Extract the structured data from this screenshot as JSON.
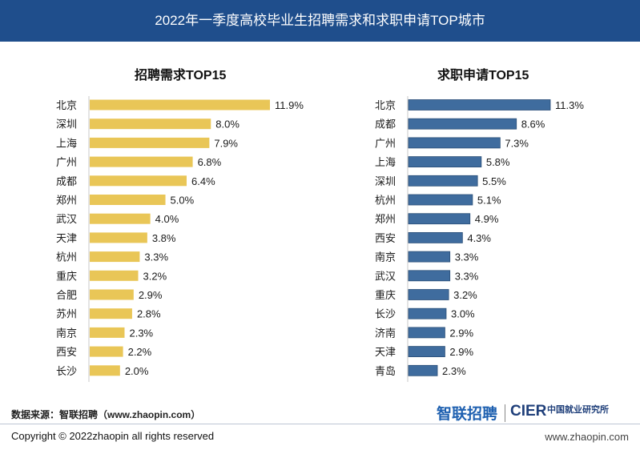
{
  "header": {
    "title": "2022年一季度高校毕业生招聘需求和求职申请TOP城市"
  },
  "colors": {
    "header_bg": "#1f4e8c",
    "left_bar": "#e9c657",
    "right_bar": "#3f6c9e"
  },
  "chart_data": [
    {
      "type": "bar",
      "orientation": "horizontal",
      "title": "招聘需求TOP15",
      "categories": [
        "北京",
        "深圳",
        "上海",
        "广州",
        "成都",
        "郑州",
        "武汉",
        "天津",
        "杭州",
        "重庆",
        "合肥",
        "苏州",
        "南京",
        "西安",
        "长沙"
      ],
      "values": [
        11.9,
        8.0,
        7.9,
        6.8,
        6.4,
        5.0,
        4.0,
        3.8,
        3.3,
        3.2,
        2.9,
        2.8,
        2.3,
        2.2,
        2.0
      ],
      "value_labels": [
        "11.9%",
        "8.0%",
        "7.9%",
        "6.8%",
        "6.4%",
        "5.0%",
        "4.0%",
        "3.8%",
        "3.3%",
        "3.2%",
        "2.9%",
        "2.8%",
        "2.3%",
        "2.2%",
        "2.0%"
      ],
      "unit": "%",
      "color": "#e9c657"
    },
    {
      "type": "bar",
      "orientation": "horizontal",
      "title": "求职申请TOP15",
      "categories": [
        "北京",
        "成都",
        "广州",
        "上海",
        "深圳",
        "杭州",
        "郑州",
        "西安",
        "南京",
        "武汉",
        "重庆",
        "长沙",
        "济南",
        "天津",
        "青岛"
      ],
      "values": [
        11.3,
        8.6,
        7.3,
        5.8,
        5.5,
        5.1,
        4.9,
        4.3,
        3.3,
        3.3,
        3.2,
        3.0,
        2.9,
        2.9,
        2.3
      ],
      "value_labels": [
        "11.3%",
        "8.6%",
        "7.3%",
        "5.8%",
        "5.5%",
        "5.1%",
        "4.9%",
        "4.3%",
        "3.3%",
        "3.3%",
        "3.2%",
        "3.0%",
        "2.9%",
        "2.9%",
        "2.3%"
      ],
      "unit": "%",
      "color": "#3f6c9e"
    }
  ],
  "footer": {
    "source": "数据来源：智联招聘（www.zhaopin.com）",
    "copyright": "Copyright ©  2022zhaopin all rights reserved",
    "website": "www.zhaopin.com",
    "logo_zhaopin": "智联招聘",
    "logo_cier": "CIER",
    "logo_cier_cn": "中国就业研究所"
  }
}
